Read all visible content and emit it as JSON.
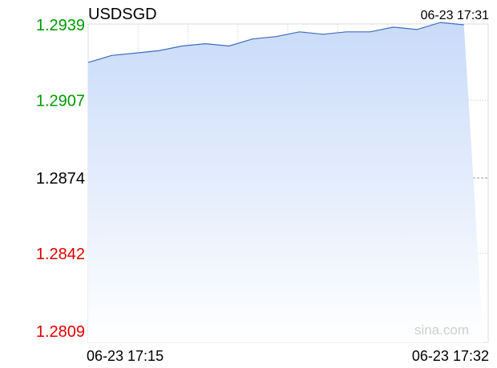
{
  "chart_data": {
    "type": "area",
    "title": "USDSGD",
    "timestamp": "06-23 17:31",
    "watermark": "sina.com",
    "xlabel": "",
    "ylabel": "",
    "x_start_label": "06-23 17:15",
    "x_end_label": "06-23 17:32",
    "ylim": [
      1.2809,
      1.2939
    ],
    "y_ticks": [
      {
        "label": "1.2939",
        "value": 1.2939,
        "color": "#009900"
      },
      {
        "label": "1.2907",
        "value": 1.2907,
        "color": "#009900"
      },
      {
        "label": "1.2874",
        "value": 1.2874,
        "color": "#000000"
      },
      {
        "label": "1.2842",
        "value": 1.2842,
        "color": "#e00000"
      },
      {
        "label": "1.2809",
        "value": 1.2809,
        "color": "#e00000"
      }
    ],
    "reference_value": 1.2874,
    "grid": true,
    "x_range_minutes": 17,
    "series": [
      {
        "x": [
          0,
          1,
          2,
          3,
          4,
          5,
          6,
          7,
          8,
          9,
          10,
          11,
          12,
          13,
          14,
          15,
          16
        ],
        "values": [
          1.2923,
          1.2926,
          1.2927,
          1.2928,
          1.293,
          1.2931,
          1.293,
          1.2933,
          1.2934,
          1.2936,
          1.2935,
          1.2936,
          1.2936,
          1.2938,
          1.2937,
          1.294,
          1.2939
        ]
      }
    ],
    "colors": {
      "line": "#3d6dbd",
      "fill_top": "#c9dbf9",
      "fill_bottom": "#ffffff",
      "grid": "#cccccc",
      "text": "#000000",
      "watermark": "#cfcfcf",
      "axis": "#888888"
    }
  }
}
